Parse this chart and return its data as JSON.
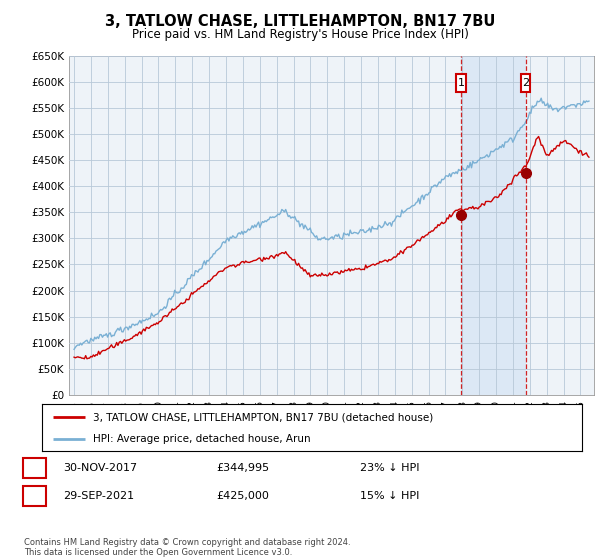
{
  "title": "3, TATLOW CHASE, LITTLEHAMPTON, BN17 7BU",
  "subtitle": "Price paid vs. HM Land Registry's House Price Index (HPI)",
  "hpi_color": "#7ab0d4",
  "price_color": "#cc0000",
  "bg_color": "#eef3f8",
  "shade_color": "#dce8f5",
  "grid_color": "#b8c8d8",
  "ylim": [
    0,
    650000
  ],
  "yticks": [
    0,
    50000,
    100000,
    150000,
    200000,
    250000,
    300000,
    350000,
    400000,
    450000,
    500000,
    550000,
    600000,
    650000
  ],
  "ytick_labels": [
    "£0",
    "£50K",
    "£100K",
    "£150K",
    "£200K",
    "£250K",
    "£300K",
    "£350K",
    "£400K",
    "£450K",
    "£500K",
    "£550K",
    "£600K",
    "£650K"
  ],
  "point1_date": "30-NOV-2017",
  "point1_price": 344995,
  "point1_hpi_pct": "23% ↓ HPI",
  "point1_label": "1",
  "point1_year": 2017.92,
  "point2_date": "29-SEP-2021",
  "point2_price": 425000,
  "point2_hpi_pct": "15% ↓ HPI",
  "point2_label": "2",
  "point2_year": 2021.75,
  "legend_line1": "3, TATLOW CHASE, LITTLEHAMPTON, BN17 7BU (detached house)",
  "legend_line2": "HPI: Average price, detached house, Arun",
  "footer": "Contains HM Land Registry data © Crown copyright and database right 2024.\nThis data is licensed under the Open Government Licence v3.0."
}
